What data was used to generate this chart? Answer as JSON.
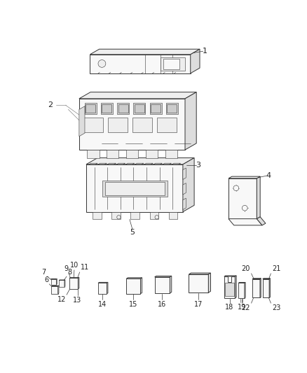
{
  "bg_color": "#ffffff",
  "line_color": "#333333",
  "label_color": "#222222",
  "label_fontsize": 7,
  "fig_width": 4.38,
  "fig_height": 5.33,
  "lw_main": 0.7,
  "lw_detail": 0.4,
  "face_light": "#f8f8f8",
  "face_mid": "#eeeeee",
  "face_dark": "#dddddd",
  "face_darker": "#cccccc"
}
